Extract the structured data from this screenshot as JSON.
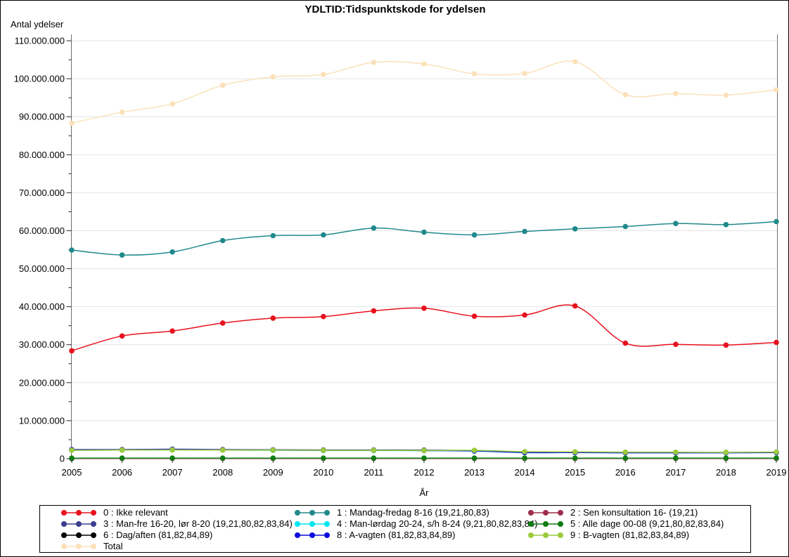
{
  "chart_data": {
    "type": "line",
    "title": "YDLTID:Tidspunktskode for ydelsen",
    "ylabel": "Antal ydelser",
    "xlabel": "År",
    "x": [
      2005,
      2006,
      2007,
      2008,
      2009,
      2010,
      2011,
      2012,
      2013,
      2014,
      2015,
      2016,
      2017,
      2018,
      2019
    ],
    "ylim": [
      0,
      110000000
    ],
    "ytick_interval": 10000000,
    "ytick_labels": [
      "0",
      "10.000.000",
      "20.000.000",
      "30.000.000",
      "40.000.000",
      "50.000.000",
      "60.000.000",
      "70.000.000",
      "80.000.000",
      "90.000.000",
      "100.000.000",
      "110.000.000"
    ],
    "grid": true,
    "legend_position": "bottom",
    "series": [
      {
        "id": "s0",
        "label": "0 : Ikke relevant",
        "color": "#e8111e",
        "values": [
          28400000,
          32300000,
          33600000,
          35700000,
          37000000,
          37400000,
          38900000,
          39600000,
          37500000,
          37800000,
          40200000,
          30400000,
          30100000,
          29900000,
          30600000
        ]
      },
      {
        "id": "s1",
        "label": "1 : Mandag-fredag 8-16 (19,21,80,83)",
        "color": "#20898b",
        "values": [
          54900000,
          53600000,
          54400000,
          57400000,
          58700000,
          58900000,
          60700000,
          59600000,
          58900000,
          59800000,
          60500000,
          61100000,
          61900000,
          61600000,
          62400000
        ]
      },
      {
        "id": "s2",
        "label": "2 : Sen konsultation 16- (19,21)",
        "color": "#9d2d49",
        "values": [
          50000,
          50000,
          50000,
          50000,
          50000,
          50000,
          50000,
          50000,
          50000,
          50000,
          50000,
          50000,
          50000,
          50000,
          50000
        ]
      },
      {
        "id": "s3",
        "label": "3 : Man-fre 16-20, lør 8-20 (19,21,80,82,83,84)",
        "color": "#3b3e8e",
        "values": [
          2400000,
          2400000,
          2500000,
          2400000,
          2350000,
          2300000,
          2300000,
          2250000,
          2150000,
          1700000,
          1700000,
          1650000,
          1650000,
          1650000,
          1700000
        ]
      },
      {
        "id": "s4",
        "label": "4 : Man-lørdag 20-24, s/h 8-24 (9,21,80,82,83,84)",
        "color": "#00e6ef",
        "values": [
          2250000,
          2250000,
          2300000,
          2250000,
          2200000,
          2150000,
          2150000,
          2100000,
          2000000,
          1600000,
          1600000,
          1550000,
          1550000,
          1550000,
          1600000
        ]
      },
      {
        "id": "s5",
        "label": "5 : Alle dage 00-08 (9,21,80,82,83,84)",
        "color": "#0e7d12",
        "values": [
          150000,
          150000,
          150000,
          150000,
          150000,
          150000,
          150000,
          150000,
          150000,
          150000,
          150000,
          150000,
          150000,
          150000,
          150000
        ]
      },
      {
        "id": "s6",
        "label": "6 : Dag/aften (81,82,84,89)",
        "color": "#000000",
        "values": [
          50000,
          null,
          null,
          null,
          null,
          null,
          null,
          null,
          null,
          null,
          null,
          null,
          null,
          null,
          null
        ]
      },
      {
        "id": "s8",
        "label": "8 : A-vagten (81,82,83,84,89)",
        "color": "#0b0bdb",
        "values": [
          2300000,
          2300000,
          2400000,
          2300000,
          2250000,
          2200000,
          2200000,
          2150000,
          2050000,
          1620000,
          1620000,
          1560000,
          1560000,
          1560000,
          1620000
        ]
      },
      {
        "id": "s9",
        "label": "9 : B-vagten (81,82,83,84,89)",
        "color": "#9ccb3b",
        "values": [
          2200000,
          2250000,
          2300000,
          2250000,
          2250000,
          2200000,
          2200000,
          2150000,
          2200000,
          1850000,
          1800000,
          1700000,
          1700000,
          1650000,
          1750000
        ]
      },
      {
        "id": "total",
        "label": "Total",
        "color": "#fbe1ba",
        "values": [
          88300000,
          91200000,
          93400000,
          98300000,
          100500000,
          101100000,
          104300000,
          103900000,
          101300000,
          101400000,
          104500000,
          95800000,
          96100000,
          95700000,
          97100000
        ]
      }
    ],
    "draw_order": [
      "s2",
      "s4",
      "s6",
      "s5",
      "s3",
      "s8",
      "s9",
      "s1",
      "s0",
      "total"
    ],
    "colors": {
      "grid": "#e4e4e4",
      "frame": "#6e6e6e",
      "tick": "#2b2b2b",
      "text": "#000000",
      "background": "#ffffff"
    }
  }
}
